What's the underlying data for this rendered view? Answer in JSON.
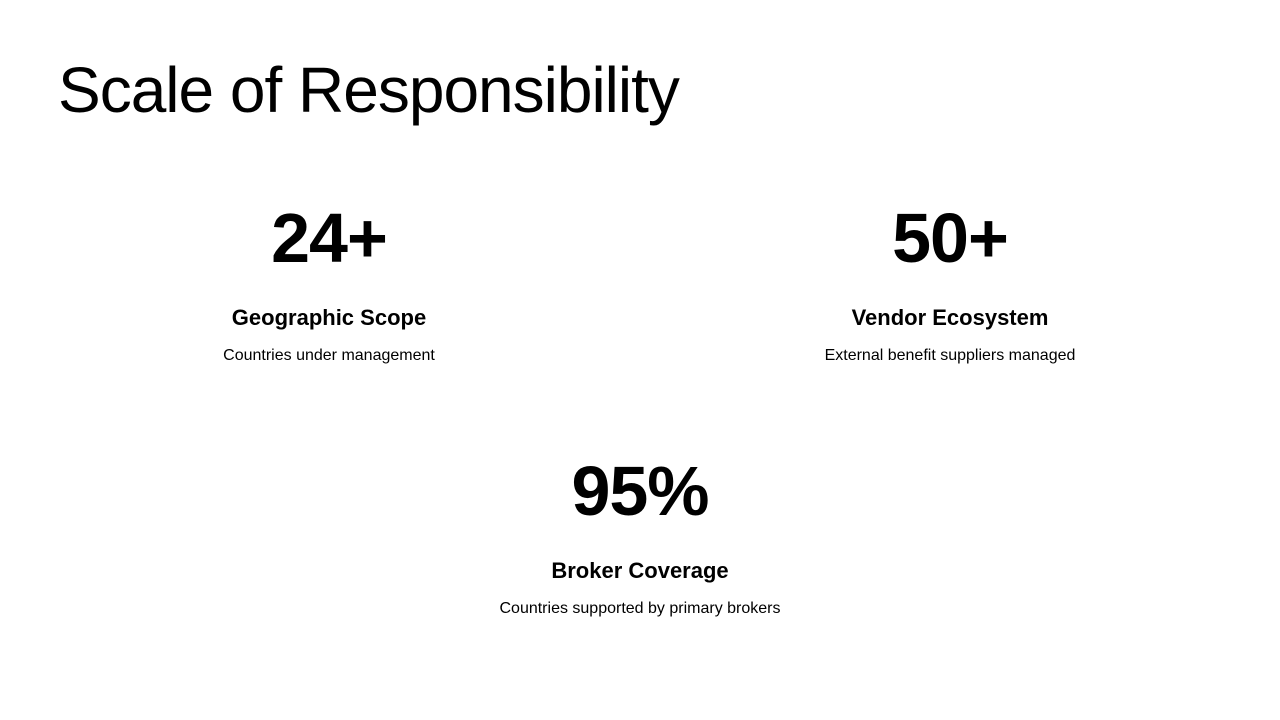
{
  "title": "Scale of Responsibility",
  "stats": [
    {
      "value": "24+",
      "label": "Geographic Scope",
      "description": "Countries under management"
    },
    {
      "value": "50+",
      "label": "Vendor Ecosystem",
      "description": "External benefit suppliers managed"
    },
    {
      "value": "95%",
      "label": "Broker Coverage",
      "description": "Countries supported by primary brokers"
    }
  ]
}
